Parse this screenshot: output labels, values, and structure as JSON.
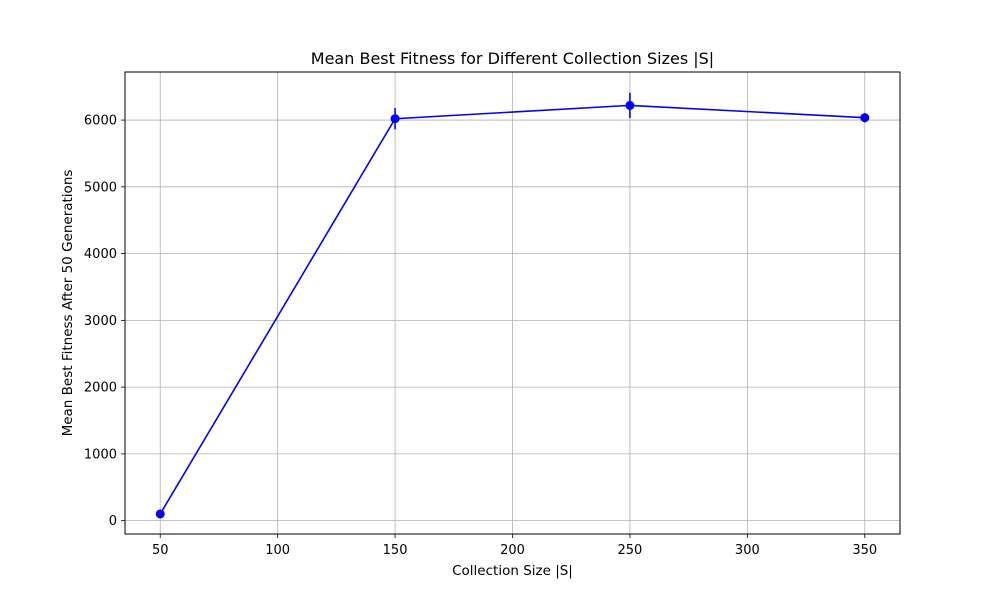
{
  "chart_data": {
    "type": "line",
    "title": "Mean Best Fitness for Different Collection Sizes |S|",
    "xlabel": "Collection Size |S|",
    "ylabel": "Mean Best Fitness After 50 Generations",
    "x": [
      50,
      150,
      250,
      350
    ],
    "series": [
      {
        "values": [
          100,
          6020,
          6220,
          6035
        ],
        "errors": [
          30,
          160,
          190,
          70
        ],
        "marker": "circle"
      }
    ],
    "xlim": [
      35,
      365
    ],
    "ylim": [
      -200,
      6720
    ],
    "xticks": [
      50,
      100,
      150,
      200,
      250,
      300,
      350
    ],
    "yticks": [
      0,
      1000,
      2000,
      3000,
      4000,
      5000,
      6000
    ],
    "grid": true,
    "colors": {
      "line": "#0000ff",
      "grid": "#b0b0b0",
      "axes": "#000000"
    }
  }
}
